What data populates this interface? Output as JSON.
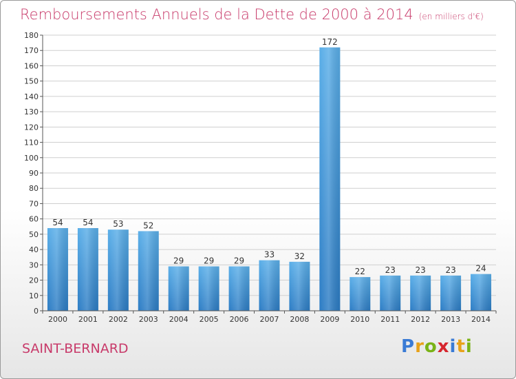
{
  "title": "Remboursements Annuels de la Dette de 2000 à 2014",
  "subtitle": "(en milliers d'€)",
  "commune": "SAINT-BERNARD",
  "logo": {
    "letters": [
      "P",
      "r",
      "o",
      "x",
      "i",
      "t",
      "i"
    ],
    "colors": [
      "#3a7bd5",
      "#e8a21a",
      "#7ab317",
      "#d6262e",
      "#3a7bd5",
      "#e8a21a",
      "#7ab317"
    ]
  },
  "colors": {
    "bar_light": "#5aaee8",
    "bar_dark": "#2c7cc4",
    "title": "#c83a6a",
    "grid": "#cfcfcf",
    "axis": "#555555"
  },
  "chart_data": {
    "type": "bar",
    "title": "Remboursements Annuels de la Dette de 2000 à 2014",
    "xlabel": "",
    "ylabel": "",
    "categories": [
      "2000",
      "2001",
      "2002",
      "2003",
      "2004",
      "2005",
      "2006",
      "2007",
      "2008",
      "2009",
      "2010",
      "2011",
      "2012",
      "2013",
      "2014"
    ],
    "values": [
      54,
      54,
      53,
      52,
      29,
      29,
      29,
      33,
      32,
      172,
      22,
      23,
      23,
      23,
      24
    ],
    "ylim": [
      0,
      180
    ],
    "yticks": [
      0,
      10,
      20,
      30,
      40,
      50,
      60,
      70,
      80,
      90,
      100,
      110,
      120,
      130,
      140,
      150,
      160,
      170,
      180
    ],
    "grid": true,
    "legend": "none"
  }
}
